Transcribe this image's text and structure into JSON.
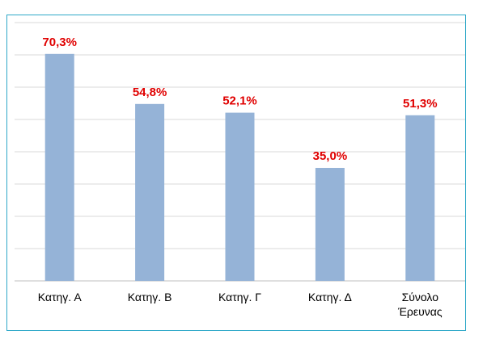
{
  "chart_data": {
    "type": "bar",
    "categories": [
      [
        "Κατηγ. Α"
      ],
      [
        "Κατηγ. Β"
      ],
      [
        "Κατηγ. Γ"
      ],
      [
        "Κατηγ. Δ"
      ],
      [
        "Σύνολο",
        "Έρευνας"
      ]
    ],
    "values": [
      70.3,
      54.8,
      52.1,
      35.0,
      51.3
    ],
    "data_labels": [
      "70,3%",
      "54,8%",
      "52,1%",
      "35,0%",
      "51,3%"
    ],
    "ylim": [
      0,
      80
    ],
    "y_gridlines": [
      10,
      20,
      30,
      40,
      50,
      60,
      70,
      80
    ],
    "grid": true,
    "legend": "none",
    "colors": {
      "bar": "#95b3d7",
      "label": "#e00000",
      "grid": "#d9d9d9",
      "axis": "#bfbfbf",
      "frame": "#2fa8c8"
    }
  }
}
